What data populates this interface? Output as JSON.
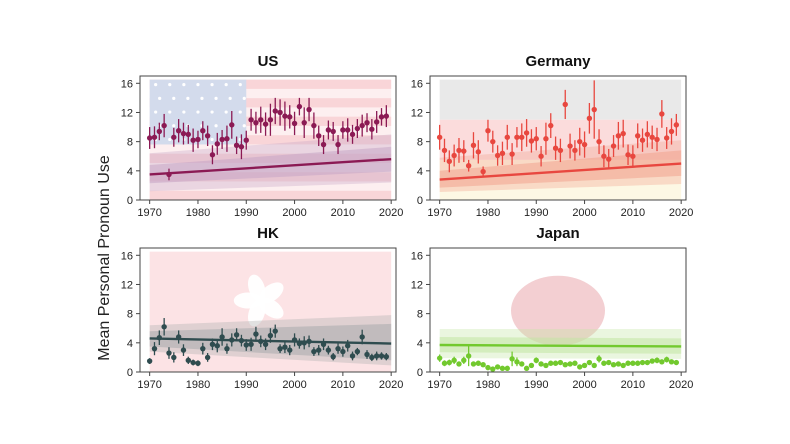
{
  "ylabel": "Mean Personal Pronoun Use",
  "colors": {
    "axis": "#444444",
    "flag_red": "#f4c6ca",
    "flag_blue": "#c9d3e8"
  },
  "chart_data": [
    {
      "type": "scatter",
      "title": "US",
      "xlim": [
        1968,
        2021
      ],
      "ylim": [
        0,
        17
      ],
      "xticks": [
        "1970",
        "1980",
        "1990",
        "2000",
        "2010",
        "2020"
      ],
      "yticks": [
        "0",
        "4",
        "8",
        "12",
        "16"
      ],
      "background": "us-flag",
      "color": "#8b1a54",
      "band_color": "#c7a6c6",
      "trend": {
        "start": [
          1970,
          3.5
        ],
        "end": [
          2020,
          5.6
        ]
      },
      "bands": [
        {
          "upper": [
            4.8,
            7.3
          ],
          "lower": [
            2.3,
            3.9
          ]
        },
        {
          "upper": [
            6.4,
            9.0
          ],
          "lower": [
            1.2,
            2.4
          ]
        }
      ],
      "x": [
        1970,
        1971,
        1972,
        1973,
        1974,
        1975,
        1976,
        1977,
        1978,
        1979,
        1980,
        1981,
        1982,
        1983,
        1984,
        1985,
        1986,
        1987,
        1988,
        1989,
        1990,
        1991,
        1992,
        1993,
        1994,
        1995,
        1996,
        1997,
        1998,
        1999,
        2000,
        2001,
        2002,
        2003,
        2004,
        2005,
        2006,
        2007,
        2008,
        2009,
        2010,
        2011,
        2012,
        2013,
        2014,
        2015,
        2016,
        2017,
        2018,
        2019
      ],
      "y": [
        8.5,
        8.6,
        9.4,
        10.2,
        3.5,
        8.6,
        9.5,
        9.1,
        9.0,
        8.2,
        8.3,
        9.5,
        8.8,
        6.2,
        7.7,
        8.3,
        8.4,
        10.3,
        7.5,
        7.3,
        8.2,
        11.0,
        10.6,
        11.0,
        10.4,
        11.0,
        12.2,
        12.0,
        11.5,
        11.4,
        10.5,
        12.8,
        10.6,
        12.4,
        10.2,
        8.8,
        7.6,
        9.6,
        9.4,
        7.6,
        9.6,
        9.6,
        9.0,
        9.8,
        10.2,
        10.6,
        9.7,
        10.7,
        11.4,
        11.5
      ],
      "err": [
        1.5,
        1.5,
        1.2,
        1.6,
        0.8,
        1.3,
        1.6,
        1.5,
        1.3,
        1.6,
        1.2,
        1.3,
        1.4,
        1.3,
        1.5,
        1.3,
        1.8,
        1.9,
        1.2,
        1.7,
        1.3,
        1.5,
        1.5,
        1.8,
        1.6,
        2.2,
        1.8,
        1.8,
        2.0,
        1.6,
        1.6,
        1.2,
        2.1,
        1.6,
        1.8,
        1.4,
        1.3,
        1.3,
        1.3,
        1.3,
        1.2,
        1.6,
        1.3,
        1.3,
        1.5,
        1.3,
        1.4,
        1.5,
        1.2,
        1.5
      ]
    },
    {
      "type": "scatter",
      "title": "Germany",
      "xlim": [
        1968,
        2021
      ],
      "ylim": [
        0,
        17
      ],
      "xticks": [
        "1970",
        "1980",
        "1990",
        "2000",
        "2010",
        "2020"
      ],
      "yticks": [
        "0",
        "4",
        "8",
        "12",
        "16"
      ],
      "background": "de-flag",
      "color": "#e8473f",
      "band_color": "#f2a48e",
      "trend": {
        "start": [
          1970,
          2.8
        ],
        "end": [
          2020,
          5.0
        ]
      },
      "bands": [
        {
          "upper": [
            4.0,
            6.8
          ],
          "lower": [
            1.7,
            3.3
          ]
        },
        {
          "upper": [
            5.8,
            8.2
          ],
          "lower": [
            1.1,
            2.2
          ]
        }
      ],
      "x": [
        1970,
        1971,
        1972,
        1973,
        1974,
        1975,
        1976,
        1977,
        1978,
        1979,
        1980,
        1981,
        1982,
        1983,
        1984,
        1985,
        1986,
        1987,
        1988,
        1989,
        1990,
        1991,
        1992,
        1993,
        1994,
        1995,
        1996,
        1997,
        1998,
        1999,
        2000,
        2001,
        2002,
        2003,
        2004,
        2005,
        2006,
        2007,
        2008,
        2009,
        2010,
        2011,
        2012,
        2013,
        2014,
        2015,
        2016,
        2017,
        2018,
        2019
      ],
      "y": [
        8.6,
        6.8,
        5.3,
        6.1,
        6.8,
        6.7,
        4.7,
        7.5,
        6.6,
        3.9,
        9.5,
        8.0,
        6.1,
        6.4,
        8.6,
        6.3,
        8.6,
        8.6,
        9.2,
        8.1,
        8.4,
        6.0,
        8.4,
        10.2,
        7.1,
        6.8,
        13.1,
        7.4,
        6.8,
        8.0,
        7.6,
        11.2,
        12.4,
        8.0,
        6.0,
        5.6,
        7.4,
        8.8,
        9.1,
        6.2,
        6.0,
        8.8,
        8.2,
        9.0,
        8.6,
        8.3,
        11.8,
        8.5,
        9.4,
        10.3
      ],
      "err": [
        1.7,
        1.6,
        1.5,
        1.5,
        1.7,
        1.5,
        0.8,
        1.8,
        1.6,
        0.7,
        1.5,
        1.5,
        1.4,
        1.6,
        1.7,
        1.5,
        1.4,
        1.9,
        1.9,
        1.6,
        1.6,
        1.4,
        2.2,
        1.7,
        1.6,
        1.6,
        2.0,
        1.7,
        1.4,
        1.9,
        1.8,
        2.1,
        4.0,
        1.7,
        1.5,
        1.4,
        1.5,
        1.9,
        1.9,
        1.4,
        1.5,
        1.7,
        1.6,
        1.8,
        1.6,
        1.6,
        1.9,
        1.5,
        1.8,
        1.5
      ]
    },
    {
      "type": "scatter",
      "title": "HK",
      "xlim": [
        1968,
        2021
      ],
      "ylim": [
        0,
        17
      ],
      "xticks": [
        "1970",
        "1980",
        "1990",
        "2000",
        "2010",
        "2020"
      ],
      "yticks": [
        "0",
        "4",
        "8",
        "12",
        "16"
      ],
      "background": "hk-flag",
      "color": "#2f4c4f",
      "band_color": "#a8acad",
      "trend": {
        "start": [
          1970,
          4.6
        ],
        "end": [
          2020,
          3.9
        ]
      },
      "bands": [
        {
          "upper": [
            5.6,
            6.6
          ],
          "lower": [
            3.5,
            1.6
          ]
        },
        {
          "upper": [
            6.4,
            7.8
          ],
          "lower": [
            2.8,
            0.9
          ]
        }
      ],
      "x": [
        1970,
        1971,
        1972,
        1973,
        1974,
        1975,
        1976,
        1977,
        1978,
        1979,
        1980,
        1981,
        1982,
        1983,
        1984,
        1985,
        1986,
        1987,
        1988,
        1989,
        1990,
        1991,
        1992,
        1993,
        1994,
        1995,
        1996,
        1997,
        1998,
        1999,
        2000,
        2001,
        2002,
        2003,
        2004,
        2005,
        2006,
        2007,
        2008,
        2009,
        2010,
        2011,
        2012,
        2013,
        2014,
        2015,
        2016,
        2017,
        2018,
        2019
      ],
      "y": [
        1.5,
        3.2,
        4.7,
        6.2,
        2.6,
        2.0,
        4.8,
        3.0,
        1.6,
        1.3,
        1.2,
        3.2,
        2.0,
        3.8,
        3.6,
        4.8,
        3.2,
        4.4,
        5.1,
        4.3,
        3.7,
        3.8,
        5.2,
        4.2,
        3.8,
        5.0,
        5.6,
        3.2,
        3.4,
        3.0,
        4.4,
        3.9,
        4.0,
        4.2,
        2.8,
        3.0,
        3.8,
        3.0,
        2.1,
        3.2,
        2.8,
        3.6,
        2.2,
        2.8,
        4.8,
        2.4,
        2.0,
        2.2,
        2.2,
        2.1
      ],
      "err": [
        0.4,
        0.9,
        1.0,
        1.2,
        0.8,
        0.7,
        0.9,
        0.8,
        0.5,
        0.4,
        0.4,
        0.8,
        0.6,
        0.8,
        0.9,
        1.2,
        0.7,
        0.9,
        0.9,
        0.8,
        0.8,
        0.9,
        1.0,
        0.8,
        0.8,
        1.0,
        0.9,
        0.6,
        0.8,
        0.7,
        0.9,
        0.7,
        0.9,
        0.8,
        0.6,
        0.7,
        0.8,
        0.6,
        0.5,
        0.7,
        0.7,
        0.8,
        0.6,
        0.5,
        1.0,
        0.6,
        0.5,
        0.6,
        0.5,
        0.5
      ]
    },
    {
      "type": "scatter",
      "title": "Japan",
      "xlim": [
        1968,
        2021
      ],
      "ylim": [
        0,
        17
      ],
      "xticks": [
        "1970",
        "1980",
        "1990",
        "2000",
        "2010",
        "2020"
      ],
      "yticks": [
        "0",
        "4",
        "8",
        "12",
        "16"
      ],
      "background": "jp-flag",
      "color": "#72c92e",
      "band_color": "#c3e6a2",
      "trend": {
        "start": [
          1970,
          3.7
        ],
        "end": [
          2020,
          3.5
        ]
      },
      "bands": [
        {
          "upper": [
            4.8,
            4.6
          ],
          "lower": [
            2.7,
            2.5
          ]
        },
        {
          "upper": [
            5.9,
            5.9
          ],
          "lower": [
            1.9,
            1.8
          ]
        }
      ],
      "x": [
        1970,
        1971,
        1972,
        1973,
        1974,
        1975,
        1976,
        1977,
        1978,
        1979,
        1980,
        1981,
        1982,
        1983,
        1984,
        1985,
        1986,
        1987,
        1988,
        1989,
        1990,
        1991,
        1992,
        1993,
        1994,
        1995,
        1996,
        1997,
        1998,
        1999,
        2000,
        2001,
        2002,
        2003,
        2004,
        2005,
        2006,
        2007,
        2008,
        2009,
        2010,
        2011,
        2012,
        2013,
        2014,
        2015,
        2016,
        2017,
        2018,
        2019
      ],
      "y": [
        1.9,
        1.2,
        1.3,
        1.6,
        1.1,
        1.6,
        2.2,
        1.1,
        1.2,
        1.0,
        0.6,
        0.4,
        0.7,
        0.5,
        0.5,
        1.8,
        1.4,
        1.1,
        0.5,
        0.9,
        1.6,
        1.1,
        0.9,
        1.2,
        1.2,
        1.3,
        1.0,
        1.1,
        1.2,
        0.7,
        0.9,
        1.3,
        0.9,
        1.8,
        1.2,
        1.3,
        1.0,
        1.1,
        0.9,
        1.2,
        1.2,
        1.2,
        1.3,
        1.3,
        1.5,
        1.6,
        1.4,
        1.7,
        1.4,
        1.3
      ],
      "err": [
        0.5,
        0.4,
        0.4,
        0.5,
        0.3,
        0.5,
        1.4,
        0.3,
        0.3,
        0.3,
        0.2,
        0.2,
        0.3,
        0.2,
        0.2,
        1.0,
        0.6,
        0.3,
        0.2,
        0.3,
        0.4,
        0.3,
        0.3,
        0.3,
        0.3,
        0.3,
        0.3,
        0.3,
        0.3,
        0.2,
        0.3,
        0.3,
        0.3,
        0.5,
        0.3,
        0.3,
        0.3,
        0.3,
        0.3,
        0.3,
        0.3,
        0.3,
        0.3,
        0.3,
        0.3,
        0.4,
        0.3,
        0.4,
        0.3,
        0.3
      ]
    }
  ]
}
